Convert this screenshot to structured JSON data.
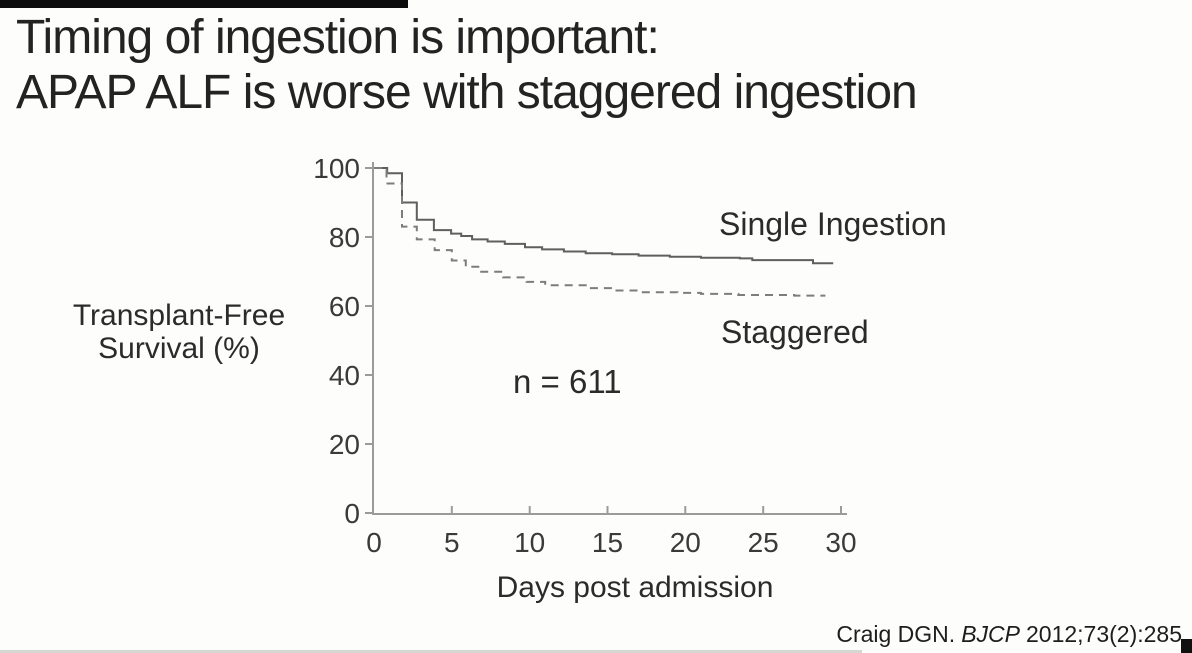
{
  "slide": {
    "title_line1": "Timing of ingestion is important:",
    "title_line2": "APAP ALF is worse with staggered ingestion"
  },
  "citation": {
    "authors": "Craig DGN.",
    "journal": "BJCP",
    "reference": "2012;73(2):285"
  },
  "chart_data": {
    "type": "line",
    "subtype": "kaplan-meier-step-curve",
    "title": "",
    "xlabel": "Days post admission",
    "ylabel": "Transplant-Free Survival (%)",
    "ylabel_lines": [
      "Transplant-Free",
      "Survival (%)"
    ],
    "annotation": "n = 611",
    "xlim": [
      0,
      30
    ],
    "ylim": [
      0,
      100
    ],
    "x_ticks": [
      0,
      5,
      10,
      15,
      20,
      25,
      30
    ],
    "y_ticks": [
      0,
      20,
      40,
      60,
      80,
      100
    ],
    "grid": false,
    "legend_position": "labels-beside-curves",
    "axis_color": "#9b9b9b",
    "series": [
      {
        "name": "Single Ingestion",
        "style": "solid",
        "color": "#5f5f5f",
        "points": [
          [
            0,
            100
          ],
          [
            0.85,
            98.5
          ],
          [
            1.8,
            90
          ],
          [
            2.75,
            85
          ],
          [
            3.85,
            82
          ],
          [
            4.95,
            81
          ],
          [
            5.6,
            80.3
          ],
          [
            6.3,
            79.3
          ],
          [
            7.3,
            78.7
          ],
          [
            8.4,
            78
          ],
          [
            9.7,
            77
          ],
          [
            10.8,
            76.4
          ],
          [
            12.2,
            75.8
          ],
          [
            13.6,
            75.3
          ],
          [
            15.3,
            75
          ],
          [
            17,
            74.6
          ],
          [
            19,
            74.3
          ],
          [
            21,
            74
          ],
          [
            23.5,
            73.8
          ],
          [
            24.3,
            73.3
          ],
          [
            28.2,
            72.4
          ]
        ],
        "end_day": 29.5,
        "final_value_pct": 72.5
      },
      {
        "name": "Staggered",
        "style": "dashed",
        "color": "#7d7d7d",
        "points": [
          [
            0,
            100
          ],
          [
            0.8,
            95.5
          ],
          [
            1.8,
            83
          ],
          [
            2.75,
            79.3
          ],
          [
            3.9,
            76.2
          ],
          [
            5,
            73.2
          ],
          [
            5.9,
            71.4
          ],
          [
            6.8,
            69.9
          ],
          [
            8.3,
            68.3
          ],
          [
            9.8,
            67
          ],
          [
            11,
            66
          ],
          [
            13.6,
            65.2
          ],
          [
            15.5,
            64.5
          ],
          [
            17.2,
            64
          ],
          [
            19.5,
            63.8
          ],
          [
            21,
            63.5
          ],
          [
            23.4,
            63.2
          ],
          [
            27,
            63
          ]
        ],
        "end_day": 29,
        "final_value_pct": 63
      }
    ]
  }
}
